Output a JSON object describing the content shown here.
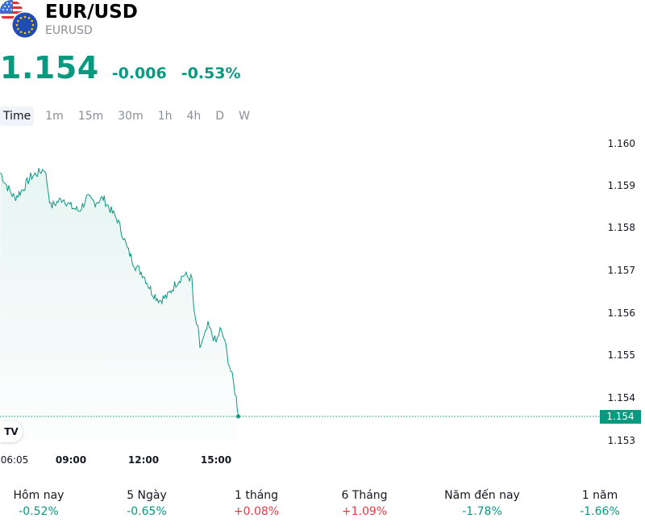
{
  "symbol": {
    "title": "EUR/USD",
    "ticker": "EURUSD",
    "flag_icons": [
      "us-flag-icon",
      "eu-flag-icon"
    ]
  },
  "quote": {
    "price": "1.154",
    "change": "-0.006",
    "change_percent": "-0.53%",
    "color": "#089981"
  },
  "tabs": [
    {
      "label": "Time",
      "active": true
    },
    {
      "label": "1m",
      "active": false
    },
    {
      "label": "15m",
      "active": false
    },
    {
      "label": "30m",
      "active": false
    },
    {
      "label": "1h",
      "active": false
    },
    {
      "label": "4h",
      "active": false
    },
    {
      "label": "D",
      "active": false
    },
    {
      "label": "W",
      "active": false
    }
  ],
  "chart_data": {
    "type": "area",
    "series": [
      {
        "name": "EURUSD",
        "color": "#089981"
      }
    ],
    "x_ticks": [
      "06:05",
      "09:00",
      "12:00",
      "15:00"
    ],
    "y_ticks": [
      "1.160",
      "1.159",
      "1.158",
      "1.157",
      "1.156",
      "1.155",
      "1.154",
      "1.153"
    ],
    "ylim": [
      1.153,
      1.16
    ],
    "last_price_label": "1.154",
    "points": [
      {
        "t": "06:05",
        "v": 1.1593
      },
      {
        "t": "06:20",
        "v": 1.159
      },
      {
        "t": "06:40",
        "v": 1.1587
      },
      {
        "t": "07:00",
        "v": 1.1589
      },
      {
        "t": "07:20",
        "v": 1.1592
      },
      {
        "t": "07:40",
        "v": 1.1593
      },
      {
        "t": "07:55",
        "v": 1.1594
      },
      {
        "t": "08:10",
        "v": 1.1585
      },
      {
        "t": "08:25",
        "v": 1.1586
      },
      {
        "t": "08:40",
        "v": 1.1587
      },
      {
        "t": "09:00",
        "v": 1.1585
      },
      {
        "t": "09:20",
        "v": 1.1584
      },
      {
        "t": "09:40",
        "v": 1.1587
      },
      {
        "t": "10:00",
        "v": 1.1586
      },
      {
        "t": "10:20",
        "v": 1.1587
      },
      {
        "t": "10:40",
        "v": 1.1584
      },
      {
        "t": "10:55",
        "v": 1.1582
      },
      {
        "t": "11:10",
        "v": 1.1578
      },
      {
        "t": "11:20",
        "v": 1.1575
      },
      {
        "t": "11:40",
        "v": 1.1571
      },
      {
        "t": "12:00",
        "v": 1.1569
      },
      {
        "t": "12:20",
        "v": 1.1565
      },
      {
        "t": "12:40",
        "v": 1.1563
      },
      {
        "t": "13:00",
        "v": 1.1564
      },
      {
        "t": "13:20",
        "v": 1.1567
      },
      {
        "t": "13:40",
        "v": 1.1569
      },
      {
        "t": "14:00",
        "v": 1.1568
      },
      {
        "t": "14:05",
        "v": 1.156
      },
      {
        "t": "14:15",
        "v": 1.1556
      },
      {
        "t": "14:20",
        "v": 1.1552
      },
      {
        "t": "14:30",
        "v": 1.1554
      },
      {
        "t": "14:40",
        "v": 1.1557
      },
      {
        "t": "14:50",
        "v": 1.1555
      },
      {
        "t": "15:00",
        "v": 1.1553
      },
      {
        "t": "15:10",
        "v": 1.1556
      },
      {
        "t": "15:20",
        "v": 1.1554
      },
      {
        "t": "15:30",
        "v": 1.1549
      },
      {
        "t": "15:40",
        "v": 1.1545
      },
      {
        "t": "15:50",
        "v": 1.154
      },
      {
        "t": "15:55",
        "v": 1.1536
      }
    ]
  },
  "performance": [
    {
      "label": "Hôm nay",
      "value": "-0.52%",
      "direction": "neg"
    },
    {
      "label": "5 Ngày",
      "value": "-0.65%",
      "direction": "neg"
    },
    {
      "label": "1 tháng",
      "value": "+0.08%",
      "direction": "pos"
    },
    {
      "label": "6 Tháng",
      "value": "+1.09%",
      "direction": "pos"
    },
    {
      "label": "Năm đến nay",
      "value": "-1.78%",
      "direction": "neg"
    },
    {
      "label": "1 năm",
      "value": "-1.66%",
      "direction": "neg"
    }
  ],
  "colors": {
    "down": "#089981",
    "up": "#f23645",
    "muted": "#8a8e97"
  },
  "tv_logo_text": "TV"
}
